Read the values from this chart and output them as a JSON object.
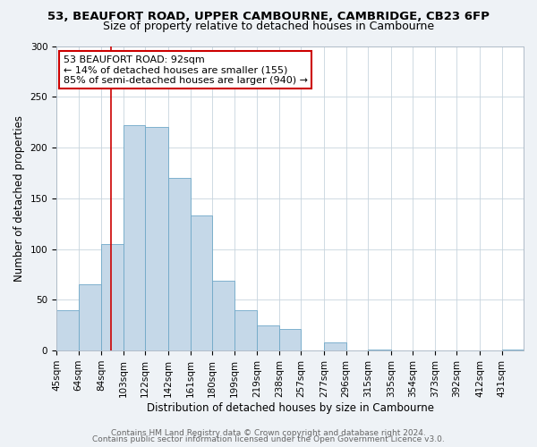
{
  "title": "53, BEAUFORT ROAD, UPPER CAMBOURNE, CAMBRIDGE, CB23 6FP",
  "subtitle": "Size of property relative to detached houses in Cambourne",
  "xlabel": "Distribution of detached houses by size in Cambourne",
  "ylabel": "Number of detached properties",
  "bin_labels": [
    "45sqm",
    "64sqm",
    "84sqm",
    "103sqm",
    "122sqm",
    "142sqm",
    "161sqm",
    "180sqm",
    "199sqm",
    "219sqm",
    "238sqm",
    "257sqm",
    "277sqm",
    "296sqm",
    "315sqm",
    "335sqm",
    "354sqm",
    "373sqm",
    "392sqm",
    "412sqm",
    "431sqm"
  ],
  "bin_edges": [
    45,
    64,
    84,
    103,
    122,
    142,
    161,
    180,
    199,
    219,
    238,
    257,
    277,
    296,
    315,
    335,
    354,
    373,
    392,
    412,
    431
  ],
  "bar_heights": [
    40,
    65,
    105,
    222,
    220,
    170,
    133,
    69,
    40,
    25,
    21,
    0,
    8,
    0,
    1,
    0,
    0,
    0,
    0,
    0,
    1
  ],
  "bar_color": "#c5d8e8",
  "bar_edge_color": "#6fa8c8",
  "property_size": 92,
  "vline_color": "#cc0000",
  "annotation_line1": "53 BEAUFORT ROAD: 92sqm",
  "annotation_line2": "← 14% of detached houses are smaller (155)",
  "annotation_line3": "85% of semi-detached houses are larger (940) →",
  "annotation_box_color": "#cc0000",
  "ylim": [
    0,
    300
  ],
  "yticks": [
    0,
    50,
    100,
    150,
    200,
    250,
    300
  ],
  "footer_line1": "Contains HM Land Registry data © Crown copyright and database right 2024.",
  "footer_line2": "Contains public sector information licensed under the Open Government Licence v3.0.",
  "background_color": "#eef2f6",
  "plot_bg_color": "#ffffff",
  "title_fontsize": 9.5,
  "subtitle_fontsize": 9,
  "axis_label_fontsize": 8.5,
  "tick_fontsize": 7.5,
  "annotation_fontsize": 8,
  "footer_fontsize": 6.5
}
